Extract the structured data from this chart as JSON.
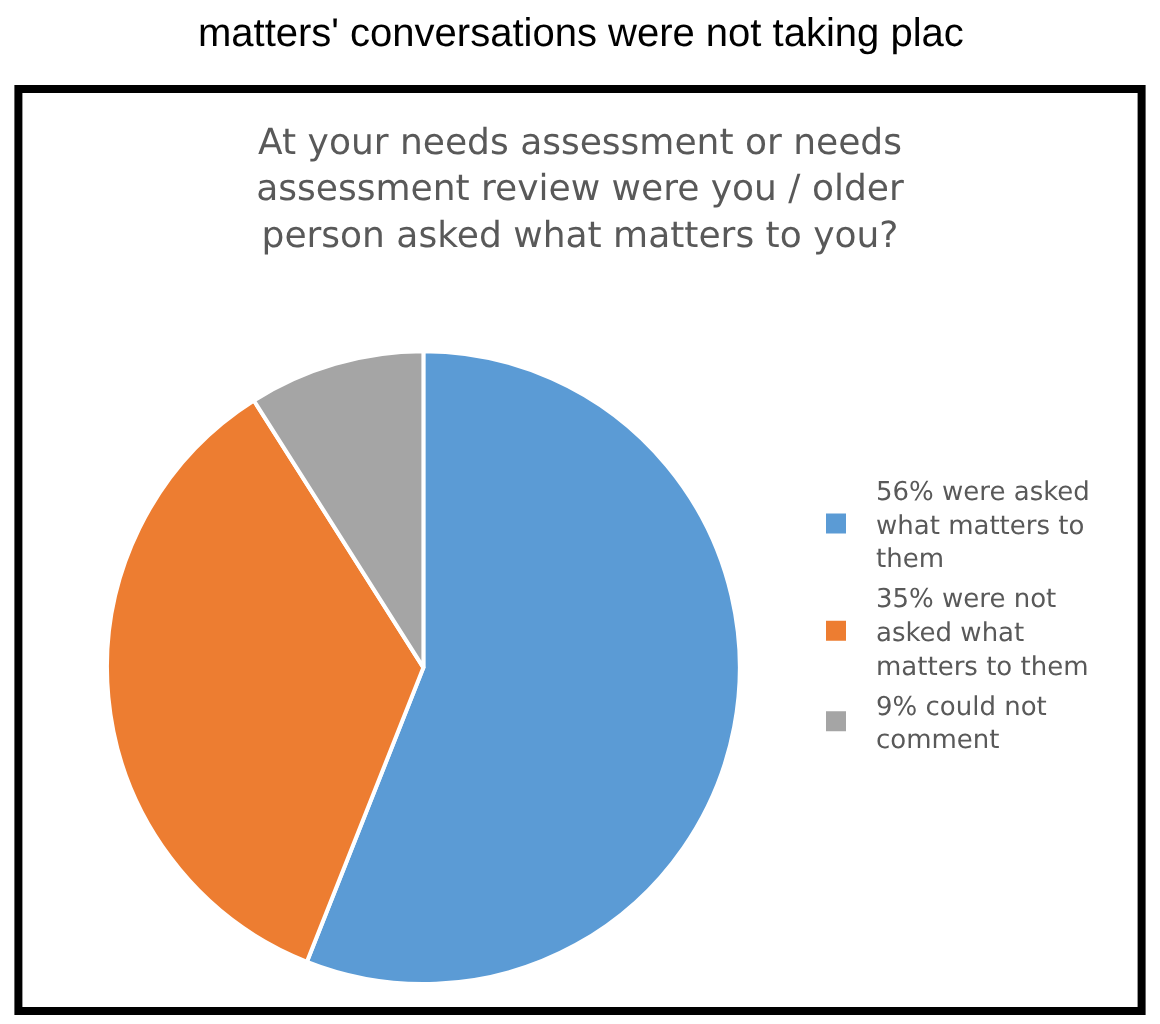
{
  "chart_data": {
    "type": "pie",
    "title": "At your needs assessment or needs assessment review were you / older person asked what matters to you?",
    "annotations": [
      "matters' conversations were not taking plac"
    ],
    "categories": [
      "56% were asked what matters to them",
      "35% were not asked what matters to them",
      "9% could not comment"
    ],
    "values": [
      56,
      35,
      9
    ],
    "colors": [
      "#5b9bd5",
      "#ed7d31",
      "#a5a5a5"
    ],
    "legend": "right"
  }
}
